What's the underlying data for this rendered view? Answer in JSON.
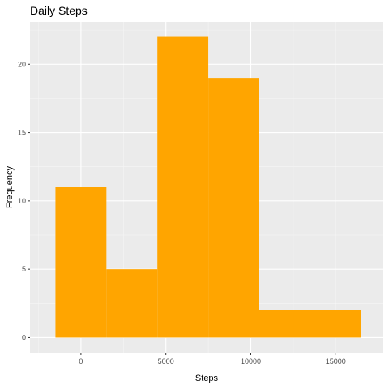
{
  "chart_data": {
    "type": "bar",
    "title": "Daily Steps",
    "xlabel": "Steps",
    "ylabel": "Frequency",
    "bin_width": 3000,
    "bins": [
      {
        "x0": -1500,
        "x1": 1500,
        "count": 11
      },
      {
        "x0": 1500,
        "x1": 4500,
        "count": 5
      },
      {
        "x0": 4500,
        "x1": 7500,
        "count": 22
      },
      {
        "x0": 7500,
        "x1": 10500,
        "count": 19
      },
      {
        "x0": 10500,
        "x1": 13500,
        "count": 2
      },
      {
        "x0": 13500,
        "x1": 16500,
        "count": 2
      }
    ],
    "xlim": [
      -3000,
      17800
    ],
    "ylim": [
      -1.1,
      23.1
    ],
    "x_ticks": [
      0,
      5000,
      10000,
      15000
    ],
    "y_ticks": [
      0,
      5,
      10,
      15,
      20
    ],
    "x_tick_labels": [
      "0",
      "5000",
      "10000",
      "15000"
    ],
    "y_tick_labels": [
      "0",
      "5",
      "10",
      "15",
      "20"
    ],
    "grid": true,
    "colors": {
      "bar": "#FFA500",
      "panel": "#EBEBEB",
      "grid_major": "#FFFFFF",
      "grid_minor": "#F5F5F5"
    }
  }
}
